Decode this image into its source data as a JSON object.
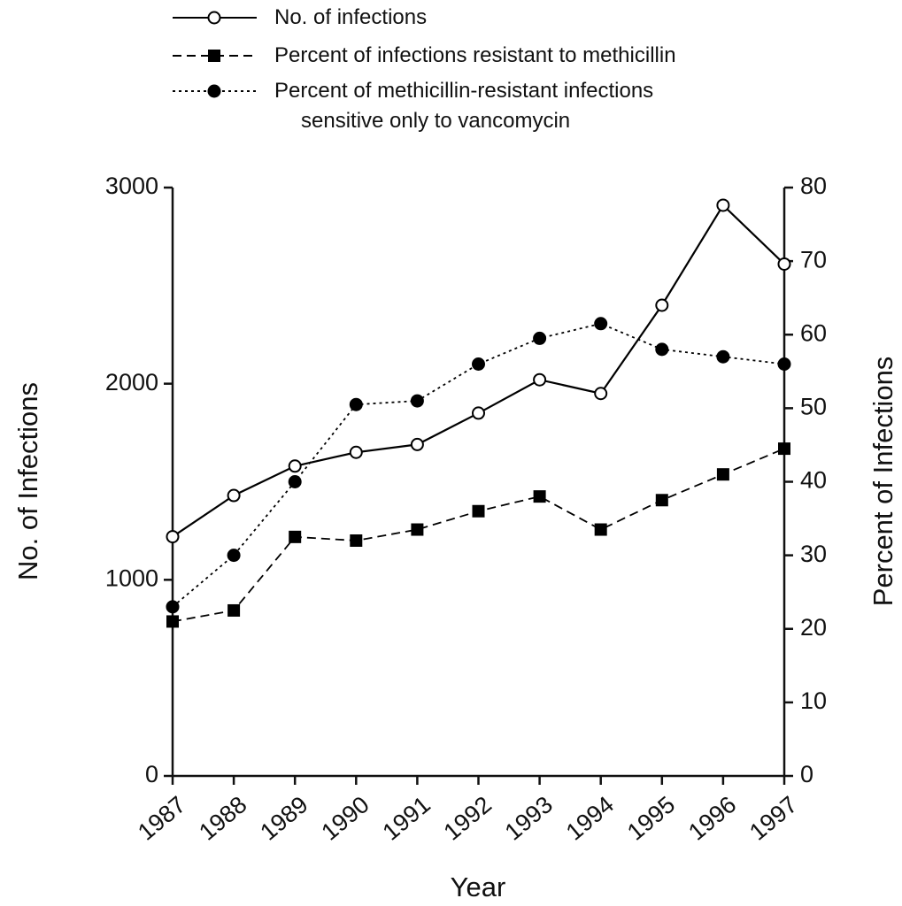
{
  "chart_data": {
    "type": "line",
    "x_label": "Year",
    "y_label": "No. of Infections",
    "y2_label": "Percent of Infections",
    "categories": [
      "1987",
      "1988",
      "1989",
      "1990",
      "1991",
      "1992",
      "1993",
      "1994",
      "1995",
      "1996",
      "1997"
    ],
    "series": [
      {
        "name": "No. of infections",
        "color": "#000000",
        "dash": "solid",
        "marker": "circle-open",
        "values": [
          1220,
          1430,
          1580,
          1650,
          1690,
          1850,
          2020,
          1950,
          2400,
          2910,
          2610
        ]
      },
      {
        "name": "Percent of infections resistant to methicillin",
        "color": "#000000",
        "dash": "dashed",
        "marker": "square",
        "axis": "y2",
        "values": [
          21,
          22.5,
          32.5,
          32,
          33.5,
          36,
          38,
          33.5,
          37.5,
          41,
          44.5
        ]
      },
      {
        "name": "Percent of methicillin-resistant infections\nsensitive only to vancomycin",
        "color": "#000000",
        "dash": "dotted",
        "marker": "circle",
        "axis": "y2",
        "values": [
          23,
          30,
          40,
          50.5,
          51,
          56,
          59.5,
          61.5,
          58,
          57,
          56
        ]
      }
    ],
    "ylim": [
      0,
      3000
    ],
    "yticks": [
      0,
      1000,
      2000,
      3000
    ],
    "y2lim": [
      0,
      80
    ],
    "y2ticks": [
      0,
      10,
      20,
      30,
      40,
      50,
      60,
      70,
      80
    ],
    "grid": false,
    "legend": "top"
  }
}
